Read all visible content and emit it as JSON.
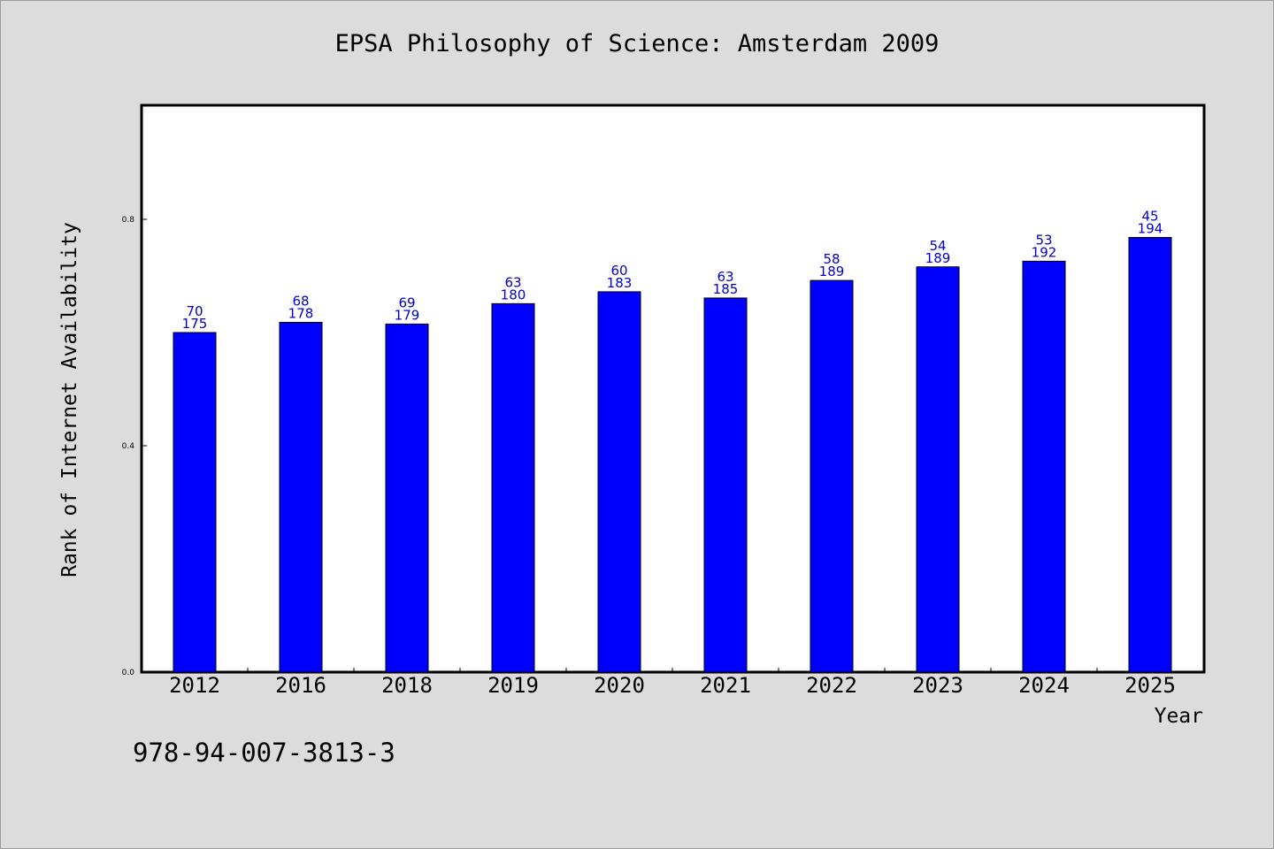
{
  "header": {
    "title": "EPSA Philosophy of Science: Amsterdam 2009"
  },
  "footer": {
    "code": "978-94-007-3813-3"
  },
  "colors": {
    "background": "#dcdcdc",
    "plot_background": "#ffffff",
    "bar": "#0000ff",
    "data_label": "#0000cc"
  },
  "chart_data": {
    "type": "bar",
    "title": "EPSA Philosophy of Science: Amsterdam 2009",
    "xlabel": "Year",
    "ylabel": "Rank of Internet Availability",
    "ylim": [
      0,
      1.0
    ],
    "yticks": [
      "0.0",
      "0.4",
      "0.8"
    ],
    "grid": false,
    "categories": [
      "2012",
      "2016",
      "2018",
      "2019",
      "2020",
      "2021",
      "2022",
      "2023",
      "2024",
      "2025"
    ],
    "values": [
      0.6,
      0.618,
      0.615,
      0.651,
      0.672,
      0.661,
      0.692,
      0.716,
      0.726,
      0.768
    ],
    "labels_top": [
      "70",
      "68",
      "69",
      "63",
      "60",
      "63",
      "58",
      "54",
      "53",
      "45"
    ],
    "labels_bottom": [
      "175",
      "178",
      "179",
      "180",
      "183",
      "185",
      "189",
      "189",
      "192",
      "194"
    ]
  }
}
